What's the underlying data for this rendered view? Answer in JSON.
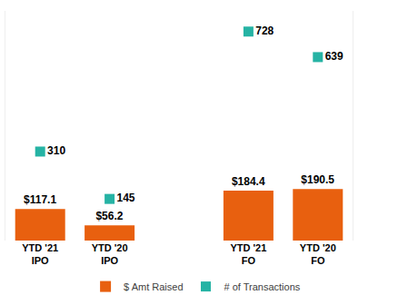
{
  "chart_data": {
    "type": "bar",
    "categories": [
      "YTD '21\nIPO",
      "YTD '20\nIPO",
      null,
      "YTD '21\nFO",
      "YTD '20\nFO"
    ],
    "series": [
      {
        "name": "$ Amt Raised",
        "type": "bar",
        "color": "#e8600f",
        "values": [
          117.1,
          56.2,
          null,
          184.4,
          190.5
        ],
        "value_labels": [
          "$117.1",
          "$56.2",
          null,
          "$184.4",
          "$190.5"
        ]
      },
      {
        "name": "# of Transactions",
        "type": "scatter",
        "marker": "square",
        "color": "#26b3a4",
        "axis": "y2",
        "values": [
          310,
          145,
          null,
          728,
          639
        ]
      }
    ],
    "ylim": [
      0,
      850
    ],
    "y2lim": [
      0,
      800
    ],
    "tick_labels": "x",
    "data_labels": true,
    "grid": false,
    "legend": "bottom"
  }
}
